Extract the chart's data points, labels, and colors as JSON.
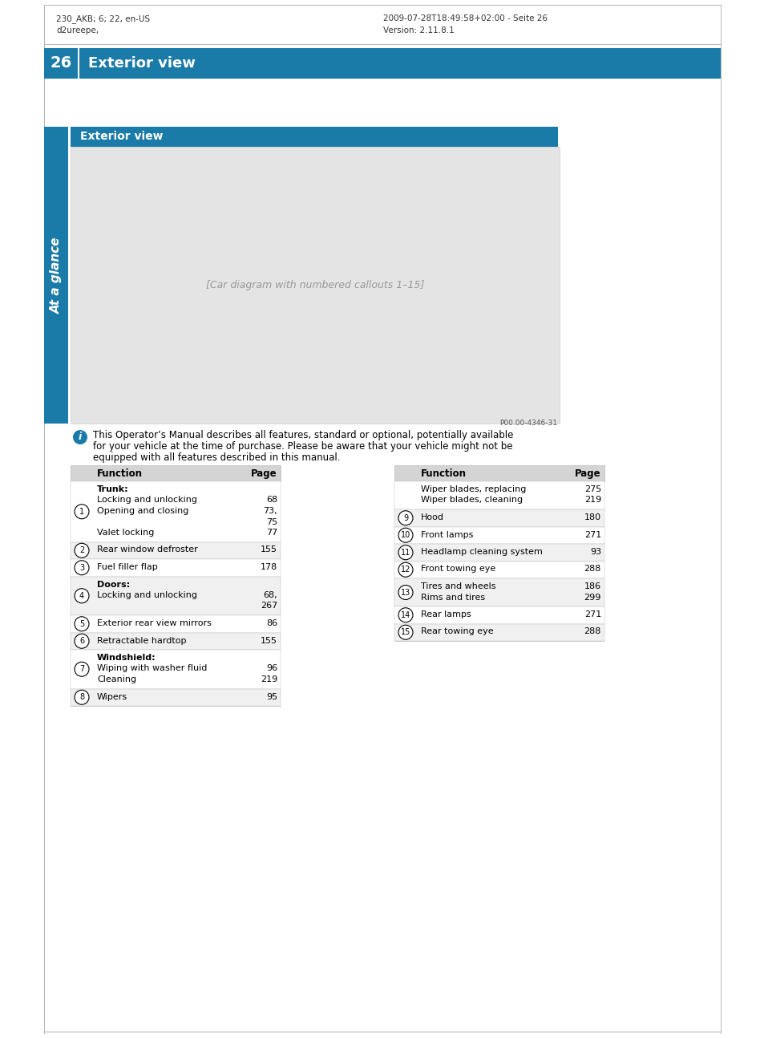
{
  "page_num": "26",
  "section_title": "Exterior view",
  "header_left_line1": "230_AKB; 6; 22, en-US",
  "header_left_line2": "d2ureepe,",
  "header_right_line1": "2009-07-28T18:49:58+02:00 - Seite 26",
  "header_right_line2": "Version: 2.11.8.1",
  "section_header": "Exterior view",
  "side_label": "At a glance",
  "info_text_line1": "This Operator’s Manual describes all features, standard or optional, potentially available",
  "info_text_line2": "for your vehicle at the time of purchase. Please be aware that your vehicle might not be",
  "info_text_line3": "equipped with all features described in this manual.",
  "car_image_ref": "P00.00-4346-31",
  "bg_color": "#ffffff",
  "teal": "#1a7aa8",
  "table_header_bg": "#d4d4d4",
  "row_bg_alt": "#f0f0f0",
  "row_bg_normal": "#ffffff",
  "border_color": "#bbbbbb",
  "left_table_rows": [
    {
      "num": "1",
      "function_lines": [
        "Trunk:",
        "Locking and unlocking",
        "Opening and closing",
        "",
        "Valet locking"
      ],
      "page_lines": [
        "",
        "68",
        "73,",
        "75",
        "77"
      ],
      "bold_first": true
    },
    {
      "num": "2",
      "function_lines": [
        "Rear window defroster"
      ],
      "page_lines": [
        "155"
      ],
      "bold_first": false
    },
    {
      "num": "3",
      "function_lines": [
        "Fuel filler flap"
      ],
      "page_lines": [
        "178"
      ],
      "bold_first": false
    },
    {
      "num": "4",
      "function_lines": [
        "Doors:",
        "Locking and unlocking"
      ],
      "page_lines": [
        "",
        "68,",
        "267"
      ],
      "bold_first": true
    },
    {
      "num": "5",
      "function_lines": [
        "Exterior rear view mirrors"
      ],
      "page_lines": [
        "86"
      ],
      "bold_first": false
    },
    {
      "num": "6",
      "function_lines": [
        "Retractable hardtop"
      ],
      "page_lines": [
        "155"
      ],
      "bold_first": false
    },
    {
      "num": "7",
      "function_lines": [
        "Windshield:",
        "Wiping with washer fluid",
        "Cleaning"
      ],
      "page_lines": [
        "",
        "96",
        "219"
      ],
      "bold_first": true
    },
    {
      "num": "8",
      "function_lines": [
        "Wipers"
      ],
      "page_lines": [
        "95"
      ],
      "bold_first": false
    }
  ],
  "right_table_rows": [
    {
      "num": "",
      "function_lines": [
        "Wiper blades, replacing",
        "Wiper blades, cleaning"
      ],
      "page_lines": [
        "275",
        "219"
      ],
      "bold_first": false
    },
    {
      "num": "9",
      "function_lines": [
        "Hood"
      ],
      "page_lines": [
        "180"
      ],
      "bold_first": false
    },
    {
      "num": "10",
      "function_lines": [
        "Front lamps"
      ],
      "page_lines": [
        "271"
      ],
      "bold_first": false
    },
    {
      "num": "11",
      "function_lines": [
        "Headlamp cleaning system"
      ],
      "page_lines": [
        "93"
      ],
      "bold_first": false
    },
    {
      "num": "12",
      "function_lines": [
        "Front towing eye"
      ],
      "page_lines": [
        "288"
      ],
      "bold_first": false
    },
    {
      "num": "13",
      "function_lines": [
        "Tires and wheels",
        "Rims and tires"
      ],
      "page_lines": [
        "186",
        "299"
      ],
      "bold_first": false
    },
    {
      "num": "14",
      "function_lines": [
        "Rear lamps"
      ],
      "page_lines": [
        "271"
      ],
      "bold_first": false
    },
    {
      "num": "15",
      "function_lines": [
        "Rear towing eye"
      ],
      "page_lines": [
        "288"
      ],
      "bold_first": false
    }
  ],
  "fig_width": 9.54,
  "fig_height": 12.94,
  "dpi": 100
}
